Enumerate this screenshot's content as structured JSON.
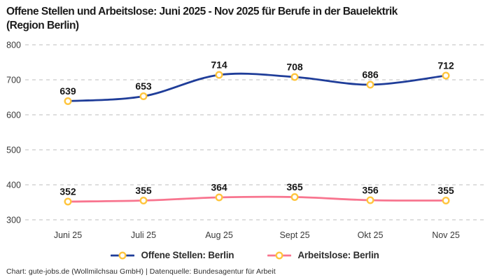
{
  "header": {
    "title_line1": "Offene Stellen und Arbeitslose: Juni 2025 - Nov 2025 für Berufe in der Bauelektrik",
    "title_line2": "(Region Berlin)"
  },
  "chart_data": {
    "type": "line",
    "categories": [
      "Juni 25",
      "Juli 25",
      "Aug 25",
      "Sept 25",
      "Okt 25",
      "Nov 25"
    ],
    "series": [
      {
        "name": "Offene Stellen: Berlin",
        "color": "#1f3d99",
        "values": [
          639,
          653,
          714,
          708,
          686,
          712
        ]
      },
      {
        "name": "Arbeitslose: Berlin",
        "color": "#f8758f",
        "values": [
          352,
          355,
          364,
          365,
          356,
          355
        ]
      }
    ],
    "marker": {
      "fill": "#ffffff",
      "stroke": "#ffc53d"
    },
    "ylim": [
      300,
      800
    ],
    "yticks": [
      300,
      400,
      500,
      600,
      700,
      800
    ],
    "grid": "horizontal-dashed",
    "legend_position": "bottom",
    "show_data_labels": true
  },
  "colors": {
    "grid": "#cbcbcb",
    "tick_text": "#3a3a3a",
    "data_label": "#161616",
    "background": "#ffffff"
  },
  "footer": {
    "text": "Chart: gute-jobs.de (Wollmilchsau GmbH) | Datenquelle: Bundesagentur für Arbeit"
  }
}
